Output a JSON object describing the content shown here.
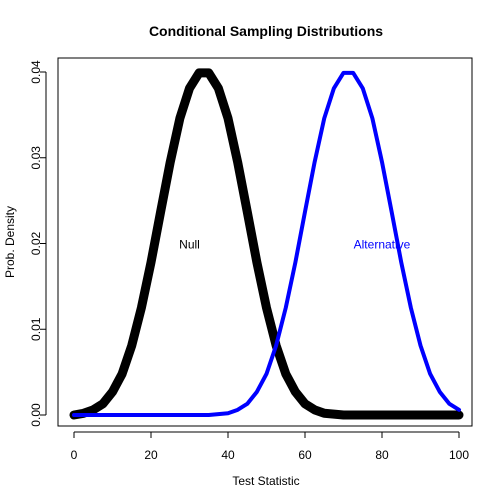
{
  "chart_data": {
    "type": "line",
    "title": "Conditional Sampling Distributions",
    "xlabel": "Test Statistic",
    "ylabel": "Prob. Density",
    "xlim": [
      0,
      100
    ],
    "ylim": [
      0,
      0.04
    ],
    "xticks": [
      0,
      20,
      40,
      60,
      80,
      100
    ],
    "xtick_labels": [
      "0",
      "20",
      "40",
      "60",
      "80",
      "100"
    ],
    "yticks": [
      0,
      0.01,
      0.02,
      0.03,
      0.04
    ],
    "ytick_labels": [
      "0.00",
      "0.01",
      "0.02",
      "0.03",
      "0.04"
    ],
    "grid": false,
    "series": [
      {
        "color": "#000000",
        "x": [
          0,
          2.5,
          5,
          7.5,
          10,
          12.5,
          15,
          17.5,
          20,
          22.5,
          25,
          27.5,
          30,
          32.5,
          35,
          37.5,
          40,
          42.5,
          45,
          47.5,
          50,
          52.5,
          55,
          57.5,
          60,
          62.5,
          65,
          67.5,
          70,
          72.5,
          75,
          77.5,
          80,
          82.5,
          85,
          87.5,
          90,
          92.5,
          95,
          97.5,
          100
        ],
        "y": [
          0.0,
          0.0002,
          0.0006,
          0.0013,
          0.0027,
          0.0048,
          0.0081,
          0.0125,
          0.0178,
          0.0237,
          0.0295,
          0.0346,
          0.0381,
          0.0399,
          0.0399,
          0.0381,
          0.0346,
          0.0295,
          0.0237,
          0.0178,
          0.0125,
          0.0081,
          0.0048,
          0.0027,
          0.0013,
          0.0006,
          0.0002,
          0.0001,
          0.0,
          0.0,
          0.0,
          0.0,
          0.0,
          0.0,
          0.0,
          0.0,
          0.0,
          0.0,
          0.0,
          0.0,
          0.0
        ]
      },
      {
        "color": "#0000ff",
        "x": [
          0,
          2.5,
          5,
          7.5,
          10,
          12.5,
          15,
          17.5,
          20,
          22.5,
          25,
          27.5,
          30,
          32.5,
          35,
          37.5,
          40,
          42.5,
          45,
          47.5,
          50,
          52.5,
          55,
          57.5,
          60,
          62.5,
          65,
          67.5,
          70,
          72.5,
          75,
          77.5,
          80,
          82.5,
          85,
          87.5,
          90,
          92.5,
          95,
          97.5,
          100
        ],
        "y": [
          0.0,
          0.0,
          0.0,
          0.0,
          0.0,
          0.0,
          0.0,
          0.0,
          0.0,
          0.0,
          0.0,
          0.0,
          0.0,
          0.0,
          0.0,
          0.0001,
          0.0002,
          0.0006,
          0.0013,
          0.0027,
          0.0048,
          0.0081,
          0.0125,
          0.0178,
          0.0237,
          0.0295,
          0.0346,
          0.0381,
          0.0399,
          0.0399,
          0.0381,
          0.0346,
          0.0295,
          0.0237,
          0.0178,
          0.0125,
          0.0081,
          0.0048,
          0.0027,
          0.0013,
          0.0006
        ]
      }
    ],
    "annotations": [
      {
        "text": "Null",
        "x": 30,
        "y": 0.02,
        "color": "#000000"
      },
      {
        "text": "Alternative",
        "x": 80,
        "y": 0.02,
        "color": "#0000ff"
      }
    ]
  }
}
